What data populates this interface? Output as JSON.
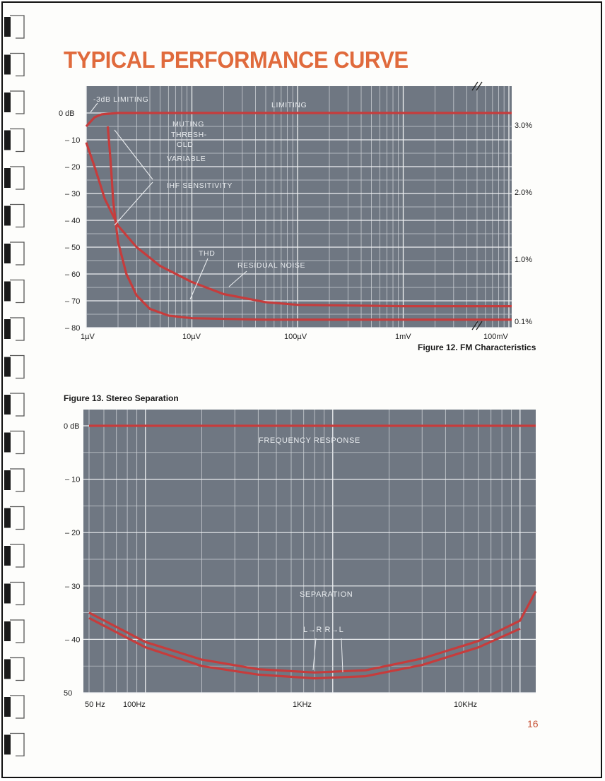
{
  "page": {
    "title": "TYPICAL PERFORMANCE CURVE",
    "page_number": "16"
  },
  "chart_data": [
    {
      "id": "fm",
      "type": "line",
      "title": "Figure 12.  FM Characteristics",
      "x_scale": "log",
      "xlim": [
        "1µV",
        "100mV"
      ],
      "x_ticks": [
        "1µV",
        "10µV",
        "100µV",
        "1mV",
        "100mV"
      ],
      "y_left_ticks": [
        "0 dB",
        "10",
        "20",
        "30",
        "40",
        "50",
        "60",
        "70",
        "80"
      ],
      "y_right_ticks": [
        "3.0%",
        "2.0%",
        "1.0%",
        "0.1%"
      ],
      "ylim_db": [
        0,
        -80
      ],
      "grid": true,
      "annotations": [
        "-3dB LIMITING",
        "LIMITING",
        "MUTING THRESH- OLD",
        "VARIABLE",
        "IHF SENSITIVITY",
        "THD",
        "RESIDUAL NOISE"
      ],
      "series": [
        {
          "name": "LIMITING",
          "color": "#c63c3c",
          "points": [
            [
              1,
              -5
            ],
            [
              1.2,
              -1.6
            ],
            [
              1.4,
              -0.5
            ],
            [
              2,
              0
            ],
            [
              100000,
              0
            ]
          ]
        },
        {
          "name": "THD",
          "color": "#c63c3c",
          "points": [
            [
              1.6,
              -5
            ],
            [
              1.7,
              -18
            ],
            [
              1.8,
              -33
            ],
            [
              2,
              -48
            ],
            [
              2.4,
              -60
            ],
            [
              3,
              -68
            ],
            [
              4,
              -73
            ],
            [
              6,
              -75.5
            ],
            [
              10,
              -76.5
            ],
            [
              50,
              -77
            ],
            [
              100000,
              -77
            ]
          ]
        },
        {
          "name": "RESIDUAL NOISE",
          "color": "#c63c3c",
          "points": [
            [
              1,
              -11
            ],
            [
              1.2,
              -20
            ],
            [
              1.5,
              -32
            ],
            [
              2,
              -42
            ],
            [
              3,
              -50
            ],
            [
              5,
              -57
            ],
            [
              10,
              -63
            ],
            [
              20,
              -67.5
            ],
            [
              50,
              -70.5
            ],
            [
              100,
              -71.5
            ],
            [
              1000,
              -72
            ],
            [
              100000,
              -72
            ]
          ]
        }
      ]
    },
    {
      "id": "stereo",
      "type": "line",
      "title": "Figure 13.  Stereo Separation",
      "x_scale": "log",
      "xlim": [
        "50 Hz",
        "15KHz"
      ],
      "x_ticks": [
        "50 Hz",
        "100Hz",
        "1KHz",
        "10KHz"
      ],
      "y_ticks": [
        "0 dB",
        "10",
        "20",
        "30",
        "40",
        "50"
      ],
      "ylim_db": [
        0,
        -50
      ],
      "grid": true,
      "annotations": [
        "FREQUENCY RESPONSE",
        "SEPARATION",
        "L→R R→L"
      ],
      "series": [
        {
          "name": "FREQUENCY RESPONSE",
          "color": "#c63c3c",
          "points": [
            [
              50,
              0
            ],
            [
              15000,
              0
            ]
          ]
        },
        {
          "name": "L→R",
          "color": "#c63c3c",
          "points": [
            [
              50,
              -35
            ],
            [
              100,
              -40.5
            ],
            [
              200,
              -43.8
            ],
            [
              400,
              -45.6
            ],
            [
              800,
              -46.2
            ],
            [
              1500,
              -45.8
            ],
            [
              3000,
              -43.6
            ],
            [
              6000,
              -40.3
            ],
            [
              10000,
              -36.5
            ],
            [
              15000,
              -31
            ]
          ]
        },
        {
          "name": "R→L",
          "color": "#c63c3c",
          "points": [
            [
              50,
              -36
            ],
            [
              100,
              -41.5
            ],
            [
              200,
              -45
            ],
            [
              400,
              -46.6
            ],
            [
              800,
              -47.3
            ],
            [
              1500,
              -46.9
            ],
            [
              3000,
              -44.8
            ],
            [
              6000,
              -41.5
            ],
            [
              10000,
              -38
            ]
          ]
        }
      ]
    }
  ]
}
